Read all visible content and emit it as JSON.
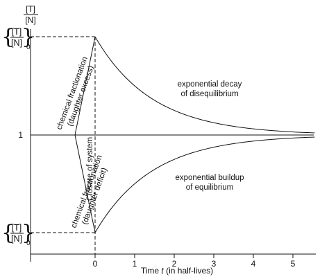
{
  "chart_data": {
    "type": "line",
    "y_axis_label": {
      "numerator": "[T]",
      "denominator": "[N]"
    },
    "y_tick_top": {
      "numerator": "[T]",
      "denominator": "[N]",
      "subscript": "0"
    },
    "y_tick_mid": "1",
    "y_tick_bottom": {
      "numerator": "[T]",
      "denominator": "[N]",
      "subscript": "0"
    },
    "x_ticks": [
      "0",
      "1",
      "2",
      "3",
      "4",
      "5"
    ],
    "x_values": [
      0,
      1,
      2,
      3,
      4,
      5
    ],
    "xlabel_prefix": "Time ",
    "xlabel_var": "t",
    "xlabel_suffix": " (in half-lives)",
    "xlim": [
      -2.35,
      5.55
    ],
    "ylim": [
      0,
      2
    ],
    "initial_ratio_high": 1.8,
    "initial_ratio_low": 0.2,
    "equilibrium": 1,
    "series": [
      {
        "curve": "decay",
        "x": [
          0,
          1,
          2,
          3,
          4,
          5,
          5.5
        ],
        "y": [
          1.8,
          1.4,
          1.2,
          1.1,
          1.05,
          1.025,
          1.018
        ]
      },
      {
        "curve": "buildup",
        "x": [
          0,
          1,
          2,
          3,
          4,
          5,
          5.5
        ],
        "y": [
          0.2,
          0.6,
          0.8,
          0.9,
          0.95,
          0.975,
          0.982
        ]
      }
    ],
    "annotations": {
      "decay_line1": "exponential decay",
      "decay_line2": "of disequilibrium",
      "buildup_line1": "exponential buildup",
      "buildup_line2": "of equilibrium",
      "excess_line1": "chemical fractionation",
      "excess_line2": "(daughter excess)",
      "deficit_line1": "chemical fractionation",
      "deficit_line2": "(daughter deficit)",
      "closure": "Closure of system"
    }
  }
}
